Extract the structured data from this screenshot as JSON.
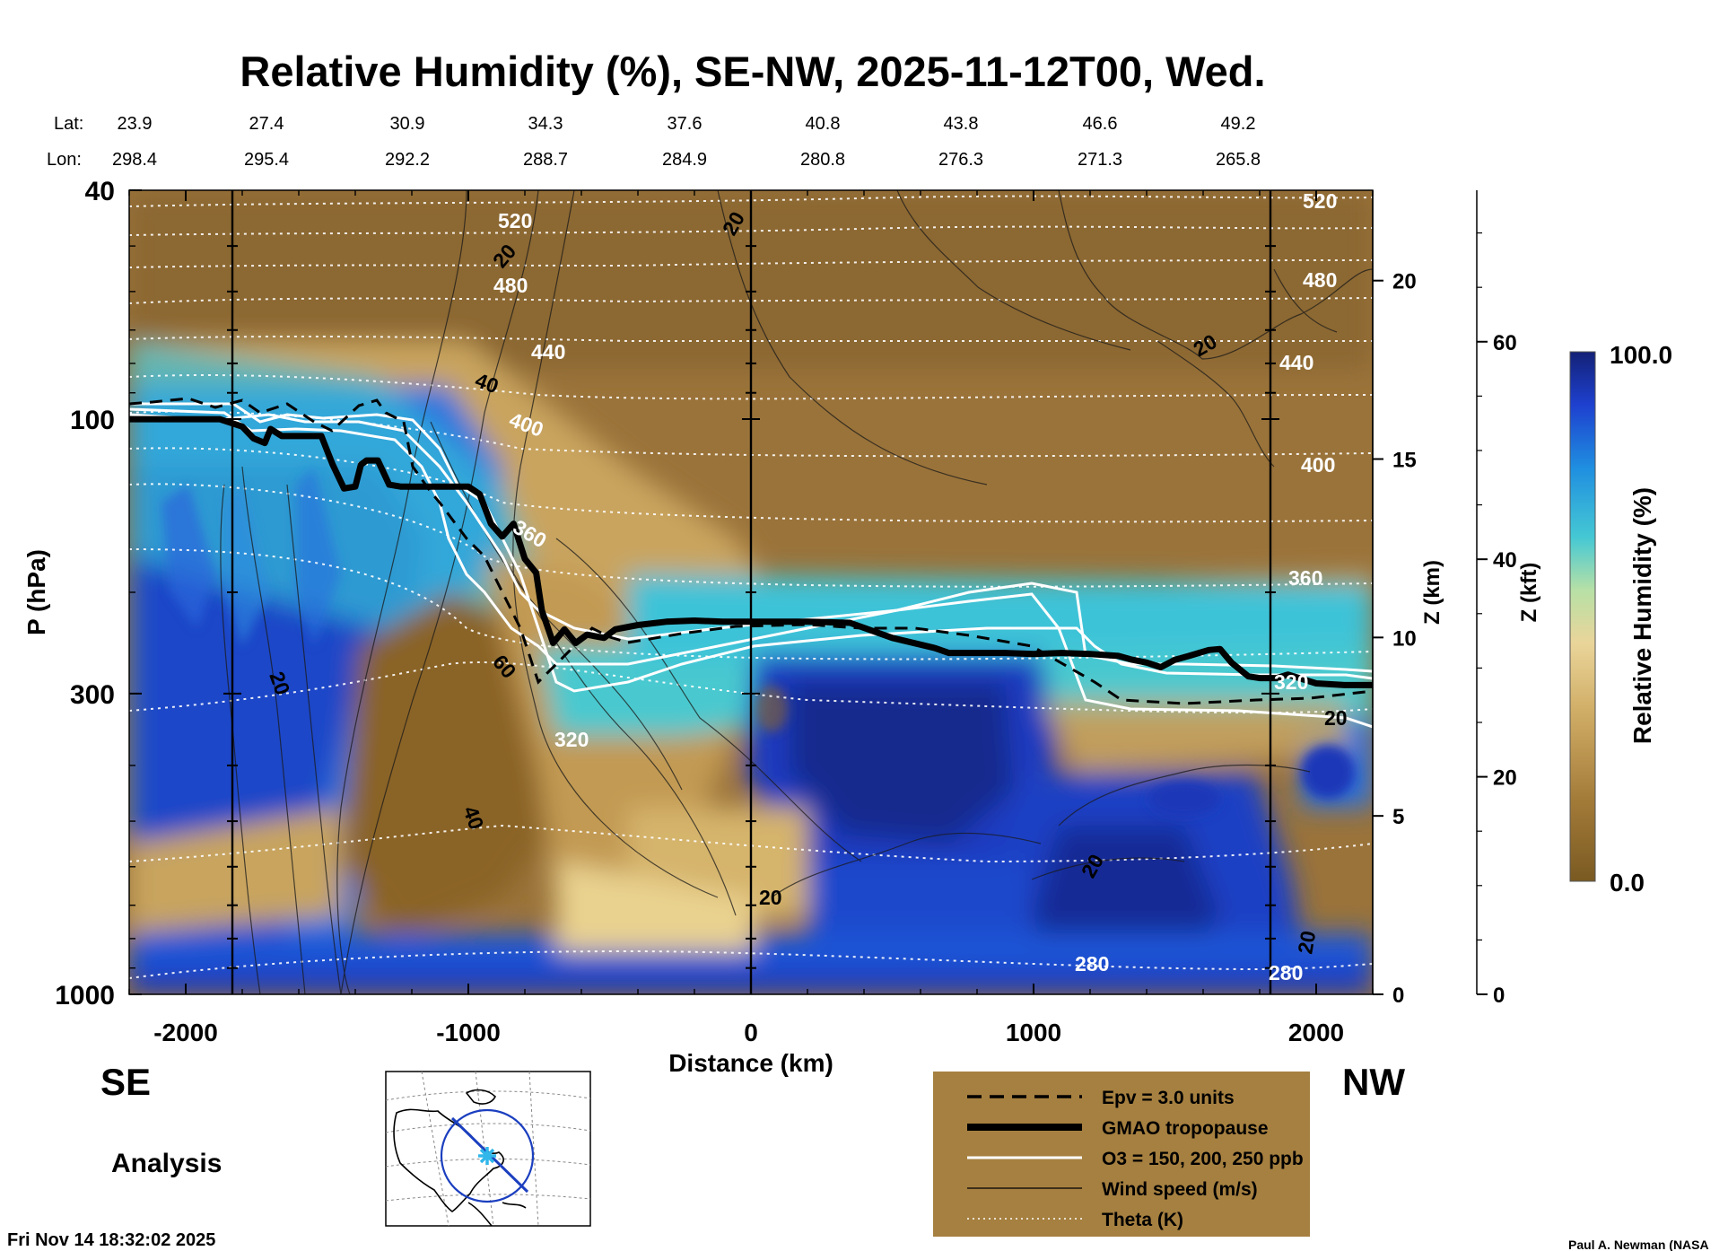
{
  "chart_data": {
    "type": "heatmap",
    "title": "Relative Humidity (%), SE-NW, 2025-11-12T00, Wed.",
    "xlabel": "Distance (km)",
    "ylabel": "P (hPa)",
    "y2label": "Z (km)",
    "y3label": "Z (kft)",
    "colorbar_label": "Relative Humidity (%)",
    "colorbar_range": [
      0.0,
      100.0
    ],
    "colorbar_max_label": "100.0",
    "colorbar_min_label": "0.0",
    "xlim": [
      -2200,
      2200
    ],
    "ylim_pressure": [
      1000,
      40
    ],
    "y_scale": "log",
    "x_ticks": [
      -2000,
      -1000,
      0,
      1000,
      2000
    ],
    "y_ticks": [
      40,
      100,
      300,
      1000
    ],
    "zkm_ticks": [
      0,
      5,
      10,
      15,
      20
    ],
    "zkft_ticks": [
      0,
      20,
      40,
      60
    ],
    "lat_label": "Lat:",
    "lon_label": "Lon:",
    "lat": [
      "23.9",
      "27.4",
      "30.9",
      "34.3",
      "37.6",
      "40.8",
      "43.8",
      "46.6",
      "49.2"
    ],
    "lon": [
      "298.4",
      "295.4",
      "292.2",
      "288.7",
      "284.9",
      "280.8",
      "276.3",
      "271.3",
      "265.8"
    ],
    "direction_left": "SE",
    "direction_right": "NW",
    "analysis_label": "Analysis",
    "theta_labels": [
      "520",
      "480",
      "440",
      "400",
      "360",
      "320",
      "280"
    ],
    "wind_labels": [
      "20",
      "40",
      "60"
    ],
    "tropopause": {
      "x": [
        -2200,
        -2000,
        -1880,
        -1800,
        -1760,
        -1720,
        -1700,
        -1660,
        -1620,
        -1560,
        -1520,
        -1480,
        -1440,
        -1400,
        -1380,
        -1360,
        -1320,
        -1280,
        -1240,
        -1200,
        -1100,
        -1000,
        -960,
        -920,
        -880,
        -840,
        -800,
        -760,
        -740,
        -700,
        -660,
        -620,
        -580,
        -520,
        -480,
        -400,
        -300,
        -200,
        -100,
        0,
        200,
        350,
        500,
        650,
        700,
        900,
        1000,
        1100,
        1200,
        1300,
        1350,
        1400,
        1450,
        1500,
        1550,
        1620,
        1660,
        1700,
        1760,
        1800,
        1860,
        1900,
        2000,
        2100,
        2200
      ],
      "p": [
        100,
        100,
        100,
        103,
        108,
        110,
        104,
        107,
        107,
        107,
        107,
        120,
        132,
        131,
        120,
        118,
        118,
        130,
        131,
        131,
        131,
        131,
        135,
        152,
        160,
        152,
        175,
        185,
        215,
        245,
        232,
        245,
        237,
        240,
        232,
        228,
        225,
        224,
        225,
        225,
        225,
        226,
        240,
        250,
        255,
        255,
        256,
        255,
        256,
        258,
        262,
        265,
        270,
        262,
        258,
        252,
        251,
        265,
        280,
        282,
        282,
        278,
        288,
        290,
        290
      ]
    },
    "legend": [
      {
        "label": "Epv = 3.0 units",
        "style": "dashed",
        "color": "#000000"
      },
      {
        "label": "GMAO tropopause",
        "style": "thick",
        "color": "#000000"
      },
      {
        "label": "O3 = 150, 200, 250 ppb",
        "style": "solid",
        "color": "#ffffff"
      },
      {
        "label": "Wind speed (m/s)",
        "style": "thin",
        "color": "#000000"
      },
      {
        "label": "Theta (K)",
        "style": "dotted",
        "color": "#ffffff"
      }
    ],
    "legend_placement": "bottom-right",
    "grid": false
  },
  "colors": {
    "dry": "#8a6428",
    "tan": "#d6b777",
    "cyan": "#43c7d3",
    "blue": "#1e4fd6",
    "navy": "#14238c",
    "legend_bg": "#a68040"
  },
  "footer": {
    "timestamp": "Fri Nov 14 18:32:02 2025",
    "credit": "Paul A. Newman (NASA"
  },
  "inset_map": {
    "icon": "globe-map-icon"
  }
}
